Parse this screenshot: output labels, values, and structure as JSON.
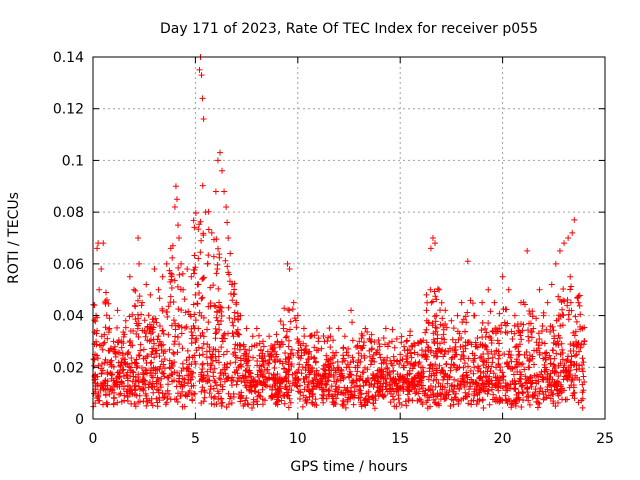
{
  "chart_data": {
    "type": "scatter",
    "title": "Day 171 of 2023, Rate Of TEC Index for receiver p055",
    "xlabel": "GPS time / hours",
    "ylabel": "ROTI / TECUs",
    "xlim": [
      0,
      25
    ],
    "ylim": [
      0,
      0.14
    ],
    "xticks": [
      0,
      5,
      10,
      15,
      20,
      25
    ],
    "yticks": [
      0,
      0.02,
      0.04,
      0.06,
      0.08,
      0.1,
      0.12,
      0.14
    ],
    "xtick_labels": [
      "0",
      "5",
      "10",
      "15",
      "20",
      "25"
    ],
    "ytick_labels": [
      "0",
      "0.02",
      "0.04",
      "0.06",
      "0.08",
      "0.1",
      "0.12",
      "0.14"
    ],
    "grid": true,
    "marker": "+",
    "color": "#ff0000",
    "series": [
      {
        "name": "ROTI",
        "x": [
          0.1,
          0.15,
          0.2,
          0.25,
          0.3,
          0.4,
          0.5,
          0.6,
          0.8,
          1.0,
          1.2,
          1.4,
          1.6,
          1.8,
          2.0,
          2.2,
          2.25,
          2.4,
          2.6,
          2.8,
          3.0,
          3.2,
          3.4,
          3.6,
          3.8,
          3.9,
          4.0,
          4.05,
          4.1,
          4.15,
          4.2,
          4.3,
          4.4,
          4.6,
          4.8,
          5.0,
          5.1,
          5.2,
          5.25,
          5.3,
          5.35,
          5.4,
          5.5,
          5.6,
          5.8,
          6.0,
          6.1,
          6.2,
          6.3,
          6.4,
          6.5,
          6.55,
          6.6,
          6.7,
          6.8,
          7.0,
          7.2,
          7.5,
          7.8,
          8.0,
          8.3,
          8.6,
          9.0,
          9.3,
          9.5,
          9.6,
          9.8,
          10.0,
          10.3,
          10.6,
          11.0,
          11.3,
          11.6,
          12.0,
          12.3,
          12.6,
          13.0,
          13.3,
          13.6,
          14.0,
          14.3,
          14.6,
          15.0,
          15.3,
          15.6,
          16.0,
          16.3,
          16.5,
          16.6,
          16.7,
          16.9,
          17.2,
          17.5,
          17.8,
          18.0,
          18.3,
          18.6,
          19.0,
          19.3,
          19.6,
          20.0,
          20.3,
          20.6,
          20.9,
          21.2,
          21.5,
          21.8,
          22.0,
          22.2,
          22.4,
          22.6,
          22.8,
          23.0,
          23.2,
          23.3,
          23.4,
          23.5,
          23.7,
          23.9,
          24.0
        ],
        "y": [
          0.025,
          0.04,
          0.066,
          0.068,
          0.05,
          0.058,
          0.068,
          0.045,
          0.035,
          0.03,
          0.042,
          0.03,
          0.038,
          0.055,
          0.05,
          0.07,
          0.06,
          0.045,
          0.052,
          0.048,
          0.058,
          0.05,
          0.055,
          0.06,
          0.066,
          0.067,
          0.082,
          0.09,
          0.085,
          0.075,
          0.07,
          0.06,
          0.05,
          0.058,
          0.055,
          0.048,
          0.052,
          0.135,
          0.14,
          0.133,
          0.124,
          0.116,
          0.08,
          0.06,
          0.072,
          0.088,
          0.1,
          0.103,
          0.096,
          0.088,
          0.082,
          0.076,
          0.07,
          0.064,
          0.052,
          0.045,
          0.04,
          0.035,
          0.032,
          0.035,
          0.03,
          0.032,
          0.03,
          0.035,
          0.06,
          0.058,
          0.045,
          0.04,
          0.035,
          0.032,
          0.03,
          0.03,
          0.032,
          0.035,
          0.032,
          0.042,
          0.03,
          0.035,
          0.03,
          0.028,
          0.035,
          0.03,
          0.025,
          0.03,
          0.028,
          0.03,
          0.038,
          0.066,
          0.07,
          0.068,
          0.05,
          0.042,
          0.038,
          0.04,
          0.045,
          0.061,
          0.04,
          0.045,
          0.05,
          0.045,
          0.055,
          0.05,
          0.04,
          0.045,
          0.065,
          0.035,
          0.05,
          0.04,
          0.045,
          0.052,
          0.06,
          0.065,
          0.068,
          0.07,
          0.055,
          0.072,
          0.077,
          0.045,
          0.035,
          0.03
        ]
      }
    ]
  }
}
